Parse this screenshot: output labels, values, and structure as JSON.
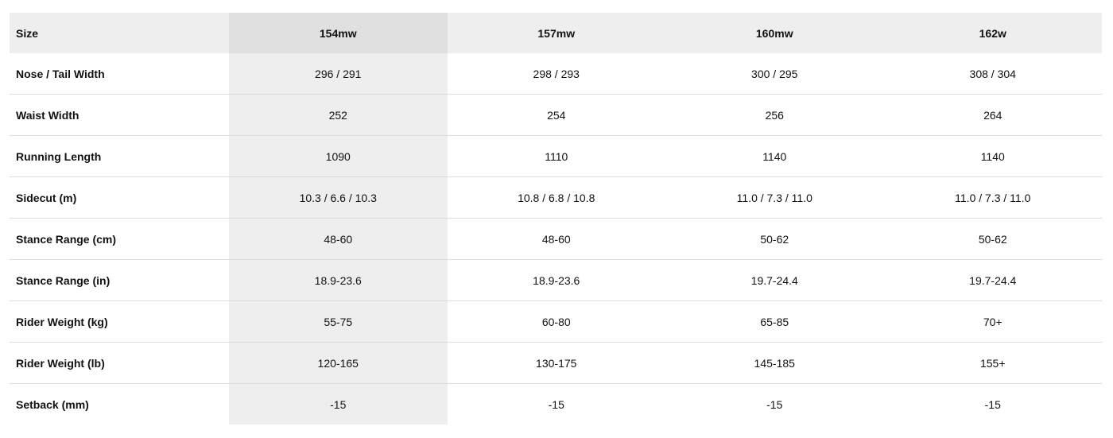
{
  "table": {
    "headers": [
      "Size",
      "154mw",
      "157mw",
      "160mw",
      "162w"
    ],
    "rows": [
      [
        "Nose / Tail Width",
        "296 / 291",
        "298 / 293",
        "300 / 295",
        "308 / 304"
      ],
      [
        "Waist Width",
        "252",
        "254",
        "256",
        "264"
      ],
      [
        "Running Length",
        "1090",
        "1110",
        "1140",
        "1140"
      ],
      [
        "Sidecut (m)",
        "10.3 / 6.6 / 10.3",
        "10.8 / 6.8 / 10.8",
        "11.0 / 7.3 / 11.0",
        "11.0 / 7.3 / 11.0"
      ],
      [
        "Stance Range (cm)",
        "48-60",
        "48-60",
        "50-62",
        "50-62"
      ],
      [
        "Stance Range (in)",
        "18.9-23.6",
        "18.9-23.6",
        "19.7-24.4",
        "19.7-24.4"
      ],
      [
        "Rider Weight (kg)",
        "55-75",
        "60-80",
        "65-85",
        "70+"
      ],
      [
        "Rider Weight (lb)",
        "120-165",
        "130-175",
        "145-185",
        "155+"
      ],
      [
        "Setback (mm)",
        "-15",
        "-15",
        "-15",
        "-15"
      ]
    ]
  }
}
